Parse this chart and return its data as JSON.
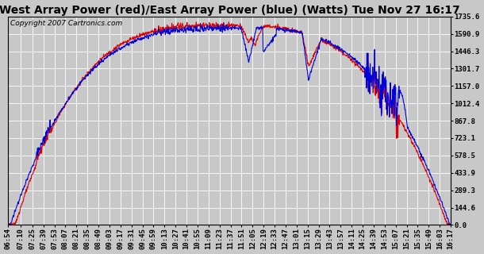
{
  "title": "West Array Power (red)/East Array Power (blue) (Watts) Tue Nov 27 16:17",
  "copyright": "Copyright 2007 Cartronics.com",
  "background_color": "#c8c8c8",
  "plot_bg_color": "#c8c8c8",
  "west_color": "#dd0000",
  "east_color": "#0000dd",
  "linewidth": 0.8,
  "ylim": [
    0.0,
    1735.6
  ],
  "yticks": [
    0.0,
    144.6,
    289.3,
    433.9,
    578.5,
    723.1,
    867.8,
    1012.4,
    1157.0,
    1301.7,
    1446.3,
    1590.9,
    1735.6
  ],
  "x_tick_labels": [
    "06:54",
    "07:10",
    "07:25",
    "07:39",
    "07:53",
    "08:07",
    "08:21",
    "08:35",
    "08:49",
    "09:03",
    "09:17",
    "09:31",
    "09:45",
    "09:59",
    "10:13",
    "10:27",
    "10:41",
    "10:55",
    "11:09",
    "11:23",
    "11:37",
    "11:51",
    "12:05",
    "12:19",
    "12:33",
    "12:47",
    "13:01",
    "13:15",
    "13:29",
    "13:43",
    "13:57",
    "14:11",
    "14:25",
    "14:39",
    "14:53",
    "15:07",
    "15:21",
    "15:35",
    "15:49",
    "16:03",
    "16:17"
  ],
  "grid_color": "#ffffff",
  "grid_linewidth": 0.6,
  "title_fontsize": 10,
  "tick_fontsize": 6.5,
  "copyright_fontsize": 6.5
}
